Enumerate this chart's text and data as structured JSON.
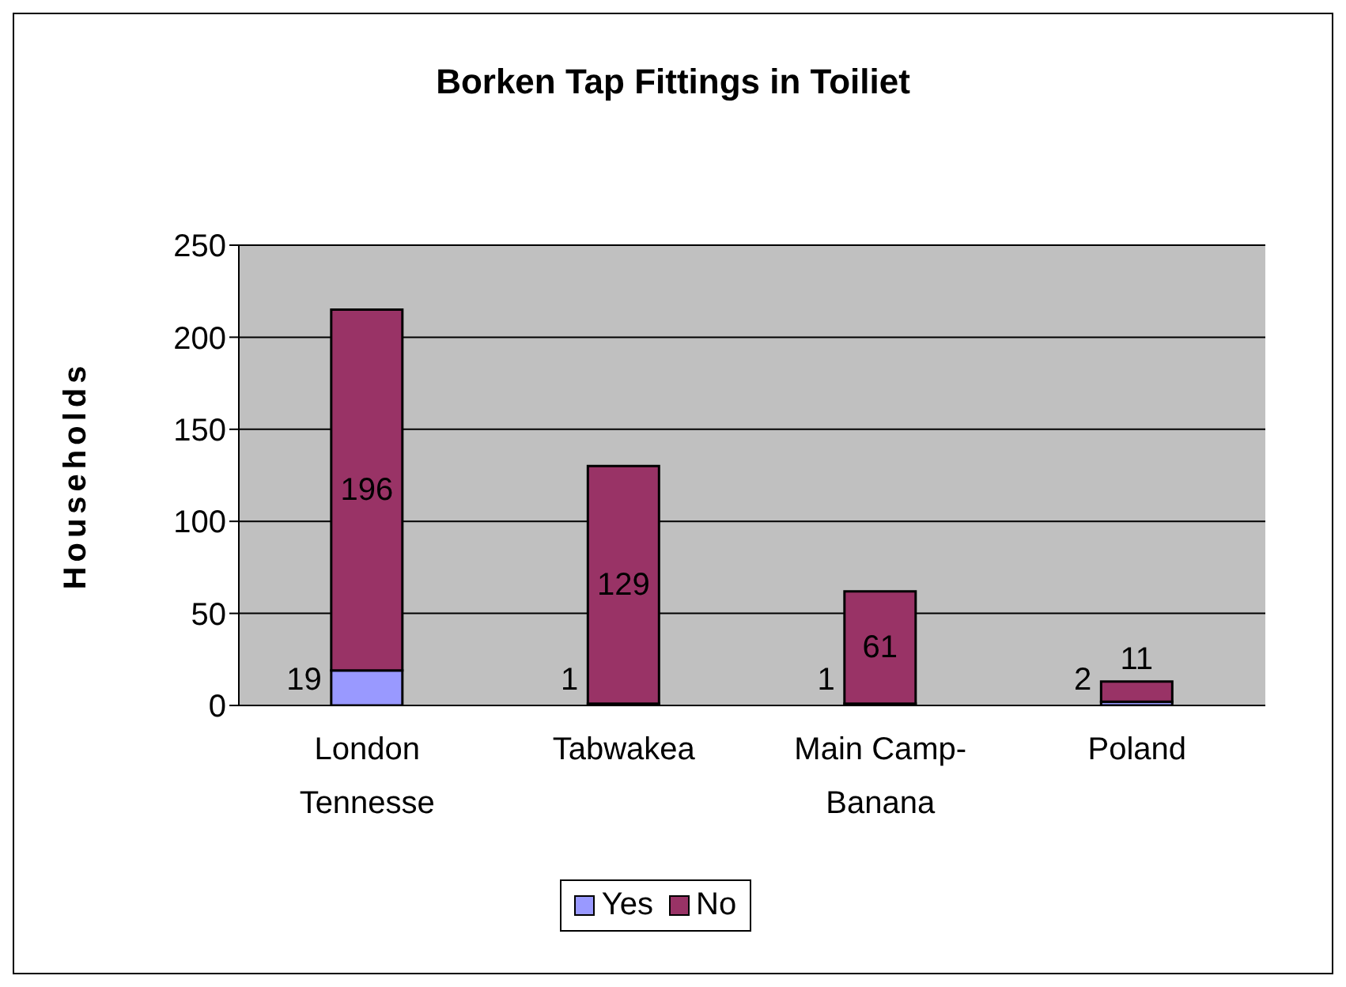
{
  "chart_data": {
    "type": "bar",
    "title": "Borken Tap Fittings in Toiliet",
    "ylabel": "Households",
    "categories": [
      "London Tennesse",
      "Tabwakea",
      "Main Camp-Banana",
      "Poland"
    ],
    "series": [
      {
        "name": "Yes",
        "color": "#9999ff",
        "values": [
          19,
          1,
          1,
          2
        ]
      },
      {
        "name": "No",
        "color": "#993366",
        "values": [
          196,
          129,
          61,
          11
        ]
      }
    ],
    "stacked": true,
    "ylim": [
      0,
      250
    ],
    "yticks": [
      0,
      50,
      100,
      150,
      200,
      250
    ],
    "grid": "y",
    "legend": "bottom",
    "data_labels": true
  }
}
